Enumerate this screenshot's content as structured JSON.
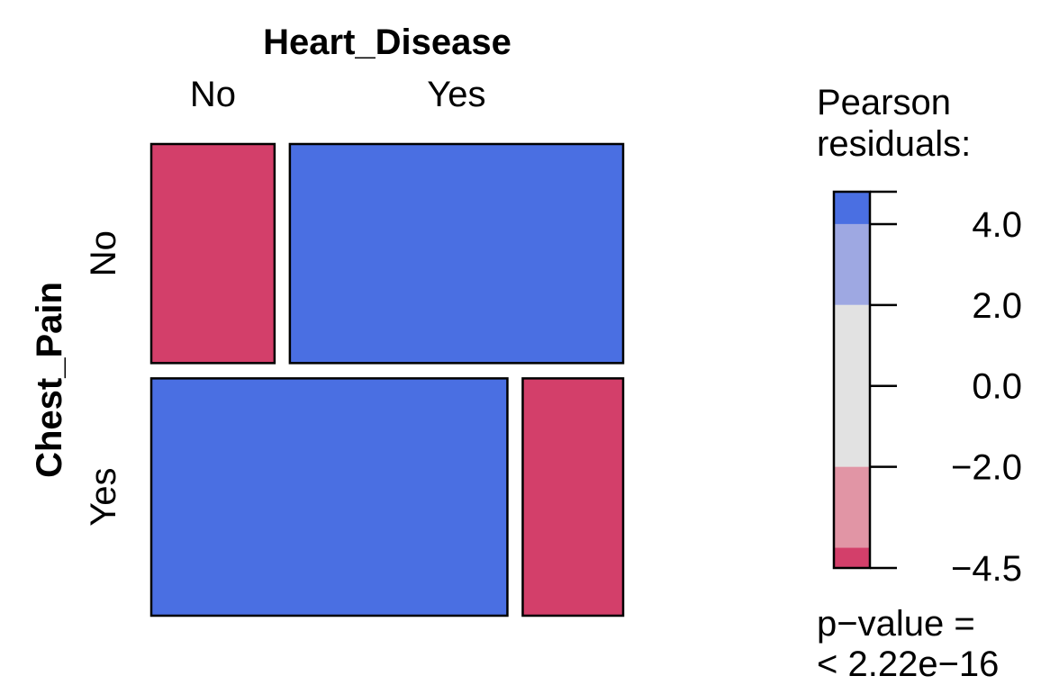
{
  "chart_data": {
    "type": "mosaic",
    "x_variable": "Heart_Disease",
    "y_variable": "Chest_Pain",
    "x_levels": [
      "No",
      "Yes"
    ],
    "y_levels": [
      "No",
      "Yes"
    ],
    "row_proportions": [
      0.48,
      0.52
    ],
    "cells": [
      {
        "row": "No",
        "col": "No",
        "share_of_row": 0.27,
        "residual": -4.5
      },
      {
        "row": "No",
        "col": "Yes",
        "share_of_row": 0.73,
        "residual": 4.8
      },
      {
        "row": "Yes",
        "col": "No",
        "share_of_row": 0.78,
        "residual": 4.8
      },
      {
        "row": "Yes",
        "col": "Yes",
        "share_of_row": 0.22,
        "residual": -4.5
      }
    ],
    "legend": {
      "title_line1": "Pearson",
      "title_line2": "residuals:",
      "ticks": [
        {
          "value": 4.0,
          "label": "4.0"
        },
        {
          "value": 2.0,
          "label": "2.0"
        },
        {
          "value": 0.0,
          "label": "0.0"
        },
        {
          "value": -2.0,
          "label": "−2.0"
        },
        {
          "value": -4.5,
          "label": "−4.5"
        }
      ],
      "range": [
        -4.5,
        4.8
      ],
      "bands": [
        {
          "from": 4.0,
          "to": 4.8,
          "color": "#4a6fe2"
        },
        {
          "from": 2.0,
          "to": 4.0,
          "color": "#9ea8e2"
        },
        {
          "from": -2.0,
          "to": 2.0,
          "color": "#e2e2e2"
        },
        {
          "from": -4.0,
          "to": -2.0,
          "color": "#e195a5"
        },
        {
          "from": -4.5,
          "to": -4.0,
          "color": "#d33f6a"
        }
      ]
    },
    "p_value_line1": "p−value =",
    "p_value_line2": "< 2.22e−16",
    "colors": {
      "strong_positive": "#4a6fe2",
      "strong_negative": "#d33f6a"
    }
  }
}
